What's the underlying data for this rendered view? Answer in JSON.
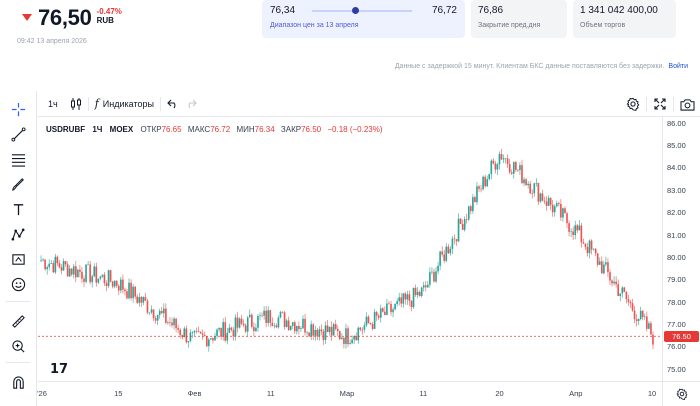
{
  "quote": {
    "last_price": "76,50",
    "change_pct": "-0.47%",
    "currency": "RUB",
    "timestamp": "09:42 13 апреля 2026",
    "day_range": {
      "low": "76,34",
      "high": "76,72",
      "caption": "Диапазон цен за 13 апреля",
      "position_fraction": 0.43
    },
    "prev_close": {
      "value": "76,86",
      "caption": "Закрытие пред.дня"
    },
    "volume": {
      "value": "1 341 042 400,00",
      "caption": "Объем торгов"
    },
    "disclaimer": "Данные с задержкой 15 минут. Клиентам БКС данные поставляются без задержки.",
    "login_link": "Войти"
  },
  "toolbar": {
    "interval": "1ч",
    "indicators_label": "Индикаторы",
    "fx_label": "f",
    "icons": {
      "chart_type": "candles-icon",
      "undo": "undo-icon",
      "redo": "redo-icon",
      "settings": "gear-icon",
      "fullscreen": "fullscreen-icon",
      "screenshot": "camera-icon"
    }
  },
  "drawing_tools": [
    "crosshair-icon",
    "trend-line-icon",
    "fib-lines-icon",
    "brush-icon",
    "text-icon",
    "pattern-icon",
    "measure-icon",
    "emoji-icon",
    "ruler-icon",
    "zoom-in-icon",
    "magnet-icon",
    "lock-icon"
  ],
  "legend": {
    "symbol": "USDRUBF",
    "interval": "1Ч",
    "exchange": "MOEX",
    "open_label": "ОТКР",
    "open": "76.65",
    "high_label": "МАКС",
    "high": "76.72",
    "low_label": "МИН",
    "low": "76.34",
    "close_label": "ЗАКР",
    "close": "76.50",
    "change": "−0.18 (−0.23%)"
  },
  "colors": {
    "up": "#26a69a",
    "down": "#ef5350",
    "last_price_line": "#e53935",
    "accent": "#1d4ed8"
  },
  "chart_data": {
    "type": "candlestick",
    "x_ticks": [
      "'26",
      "15",
      "Фев",
      "11",
      "Мар",
      "11",
      "20",
      "Апр",
      "10"
    ],
    "y_ticks": [
      "86.00",
      "85.00",
      "84.00",
      "83.00",
      "82.00",
      "81.00",
      "80.00",
      "79.00",
      "78.00",
      "77.00",
      "76.00",
      "75.00"
    ],
    "ylim": [
      74.5,
      86.3
    ],
    "last_price_label": "76.50",
    "last_price": 76.5,
    "series": [
      {
        "name": "USDRUBF",
        "x": [
          "'26",
          "15",
          "Фев",
          "11",
          "Мар",
          "11",
          "20",
          "Апр",
          "10"
        ],
        "close": [
          79.9,
          78.9,
          76.3,
          77.4,
          76.5,
          78.5,
          84.7,
          81.2,
          76.5
        ]
      }
    ]
  }
}
